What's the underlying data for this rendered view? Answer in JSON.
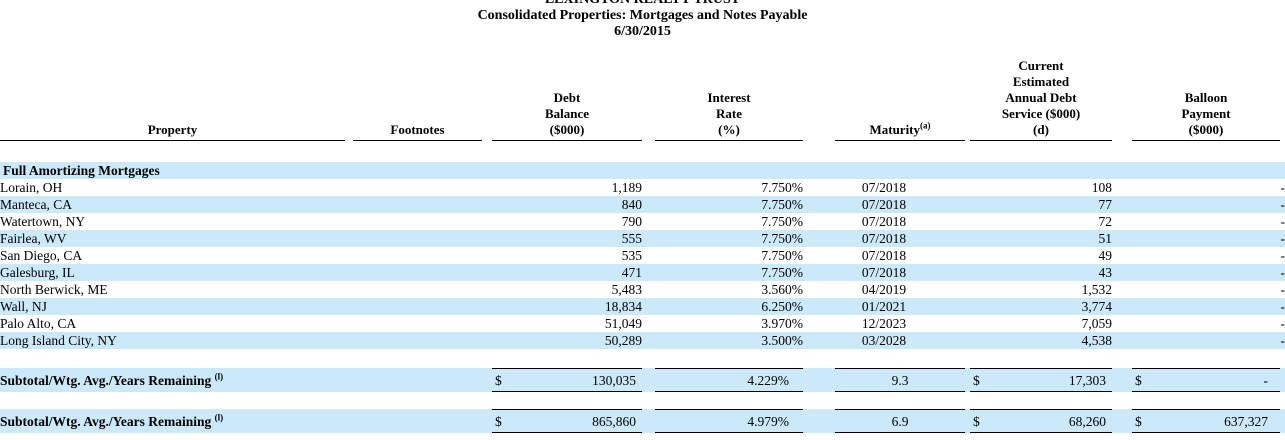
{
  "title": {
    "line1": "LEXINGTON REALTY TRUST",
    "line2": "Consolidated Properties: Mortgages and Notes Payable",
    "line3": "6/30/2015"
  },
  "colors": {
    "row_highlight": "#cce9fa",
    "rule": "#000000",
    "text": "#000000"
  },
  "table": {
    "columns": [
      {
        "id": "property",
        "lines": [
          "Property"
        ]
      },
      {
        "id": "footnotes",
        "lines": [
          "Footnotes"
        ]
      },
      {
        "id": "debt_balance",
        "lines": [
          "Debt",
          "Balance",
          "($000)"
        ]
      },
      {
        "id": "interest_rate",
        "lines": [
          "Interest",
          "Rate",
          "(%)"
        ]
      },
      {
        "id": "maturity",
        "lines": [
          "Maturity"
        ],
        "sup": "(a)"
      },
      {
        "id": "debt_service",
        "lines": [
          "Current",
          "Estimated",
          "Annual Debt",
          "Service ($000)",
          "(d)"
        ]
      },
      {
        "id": "balloon",
        "lines": [
          "Balloon",
          "Payment",
          "($000)"
        ]
      }
    ],
    "section_header": "Full Amortizing Mortgages",
    "rows": [
      {
        "property": "Lorain, OH",
        "footnotes": "",
        "debt_balance": "1,189",
        "interest_rate": "7.750%",
        "maturity": "07/2018",
        "debt_service": "108",
        "balloon": "-"
      },
      {
        "property": "Manteca, CA",
        "footnotes": "",
        "debt_balance": "840",
        "interest_rate": "7.750%",
        "maturity": "07/2018",
        "debt_service": "77",
        "balloon": "-"
      },
      {
        "property": "Watertown, NY",
        "footnotes": "",
        "debt_balance": "790",
        "interest_rate": "7.750%",
        "maturity": "07/2018",
        "debt_service": "72",
        "balloon": "-"
      },
      {
        "property": "Fairlea, WV",
        "footnotes": "",
        "debt_balance": "555",
        "interest_rate": "7.750%",
        "maturity": "07/2018",
        "debt_service": "51",
        "balloon": "-"
      },
      {
        "property": "San Diego, CA",
        "footnotes": "",
        "debt_balance": "535",
        "interest_rate": "7.750%",
        "maturity": "07/2018",
        "debt_service": "49",
        "balloon": "-"
      },
      {
        "property": "Galesburg, IL",
        "footnotes": "",
        "debt_balance": "471",
        "interest_rate": "7.750%",
        "maturity": "07/2018",
        "debt_service": "43",
        "balloon": "-"
      },
      {
        "property": "North Berwick, ME",
        "footnotes": "",
        "debt_balance": "5,483",
        "interest_rate": "3.560%",
        "maturity": "04/2019",
        "debt_service": "1,532",
        "balloon": "-"
      },
      {
        "property": "Wall, NJ",
        "footnotes": "",
        "debt_balance": "18,834",
        "interest_rate": "6.250%",
        "maturity": "01/2021",
        "debt_service": "3,774",
        "balloon": "-"
      },
      {
        "property": "Palo Alto, CA",
        "footnotes": "",
        "debt_balance": "51,049",
        "interest_rate": "3.970%",
        "maturity": "12/2023",
        "debt_service": "7,059",
        "balloon": "-"
      },
      {
        "property": "Long Island City, NY",
        "footnotes": "",
        "debt_balance": "50,289",
        "interest_rate": "3.500%",
        "maturity": "03/2028",
        "debt_service": "4,538",
        "balloon": "-"
      }
    ],
    "subtotals": [
      {
        "label": "Subtotal/Wtg. Avg./Years Remaining",
        "sup": "(l)",
        "currency": "$",
        "debt_balance": "130,035",
        "interest_rate": "4.229%",
        "maturity": "9.3",
        "debt_service": "17,303",
        "balloon": "-"
      },
      {
        "label": "Subtotal/Wtg. Avg./Years Remaining",
        "sup": "(l)",
        "currency": "$",
        "debt_balance": "865,860",
        "interest_rate": "4.979%",
        "maturity": "6.9",
        "debt_service": "68,260",
        "balloon": "637,327"
      }
    ]
  }
}
